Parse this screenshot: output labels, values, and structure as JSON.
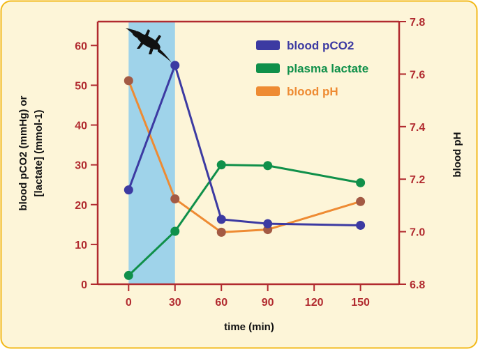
{
  "chart_data": {
    "type": "line",
    "x": [
      0,
      30,
      60,
      90,
      150
    ],
    "xlabel": "time (min)",
    "xticks": [
      0,
      30,
      60,
      90,
      120,
      150
    ],
    "xlim": [
      -20,
      175
    ],
    "left_axis": {
      "label_line1": "blood pCO2 (mmHg) or",
      "label_line2": "[lactate] (mmol-1)",
      "ylim": [
        0,
        66
      ],
      "ticks": [
        0,
        10,
        20,
        30,
        40,
        50,
        60
      ]
    },
    "right_axis": {
      "label": "blood pH",
      "ylim": [
        6.8,
        7.8
      ],
      "ticks": [
        "6.8",
        "7.0",
        "7.2",
        "7.4",
        "7.6",
        "7.8"
      ]
    },
    "shaded_region": {
      "x_from": 0,
      "x_to": 30,
      "color": "#9fd3ea",
      "icon": "alligator-silhouette-icon"
    },
    "series": [
      {
        "name": "blood pCO2",
        "axis": "left",
        "color": "#3c3aa2",
        "values": [
          23.7,
          55.0,
          16.3,
          15.2,
          14.8
        ]
      },
      {
        "name": "plasma lactate",
        "axis": "left",
        "color": "#10904a",
        "values": [
          2.2,
          13.3,
          30.0,
          29.8,
          25.5
        ]
      },
      {
        "name": "blood pH",
        "axis": "right",
        "color": "#ee8b33",
        "values": [
          7.575,
          7.125,
          6.998,
          7.008,
          7.115
        ]
      }
    ],
    "colors": {
      "axis": "#b12a2f",
      "frame": "#f2b91a",
      "background": "#fdf5d8",
      "marker": "#a35a44"
    }
  }
}
